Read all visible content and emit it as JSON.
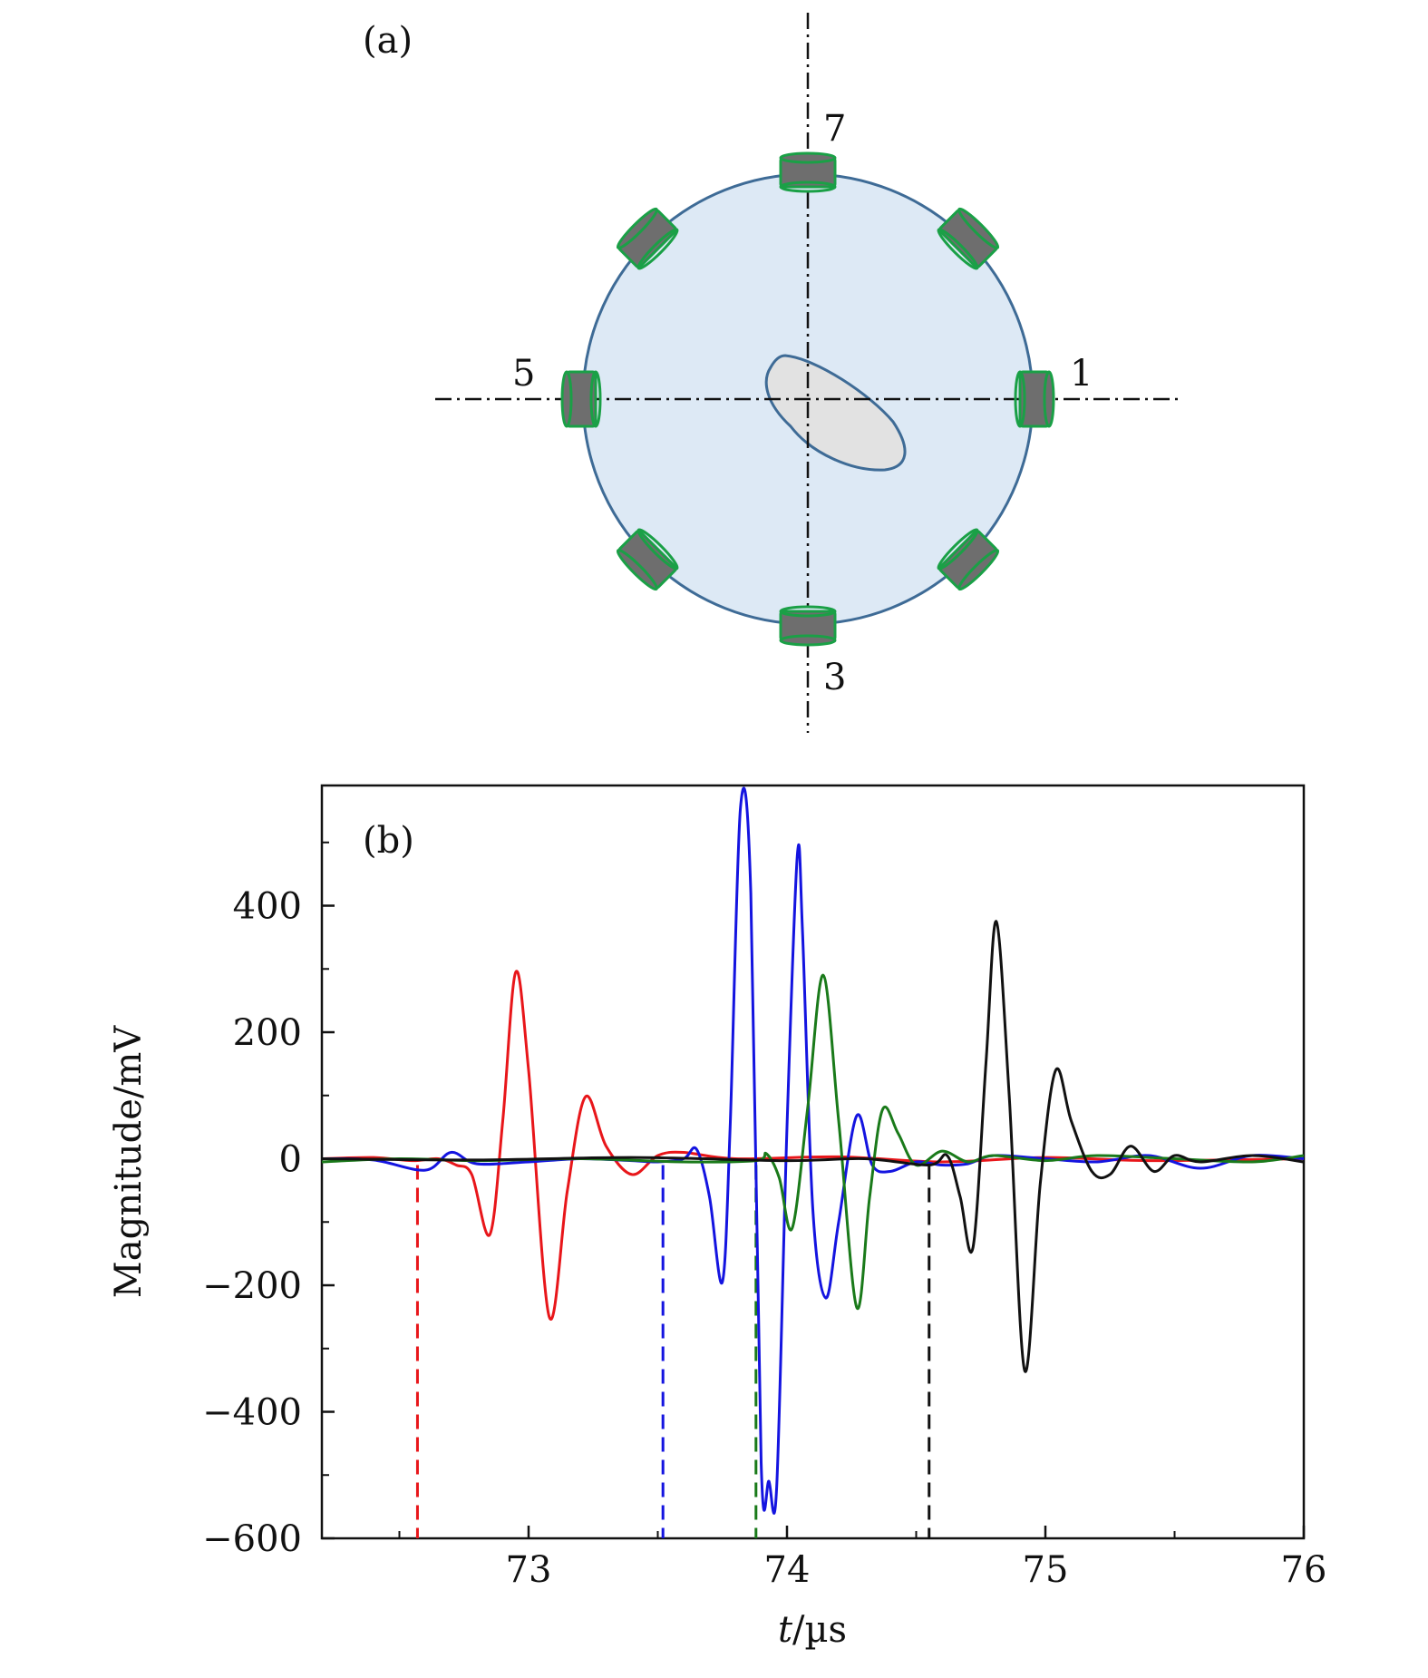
{
  "panel_a": {
    "label": "(a)",
    "sensor_labels": {
      "top": "7",
      "left": "5",
      "right": "1",
      "bottom": "3"
    },
    "colors": {
      "disk_fill": "#dde9f5",
      "disk_edge": "#3e6b96",
      "sensor_body": "#6e6e6e",
      "sensor_edge": "#1aa046",
      "defect_fill": "#e2e2e2",
      "defect_edge": "#3e6b96",
      "axis": "#111111"
    }
  },
  "chart_data": {
    "type": "line",
    "panel_label": "(b)",
    "xlabel_var": "t",
    "xlabel_unit": "/µs",
    "ylabel": "Magnitude/mV",
    "xlim": [
      72.2,
      76.0
    ],
    "ylim": [
      -600,
      590
    ],
    "xticks": [
      73,
      74,
      75,
      76
    ],
    "yticks": [
      -600,
      -400,
      -200,
      0,
      200,
      400
    ],
    "ytick_labels": [
      "−600",
      "−400",
      "−200",
      "0",
      "200",
      "400"
    ],
    "grid": false,
    "series": [
      {
        "color": "#e8161a",
        "onset": 72.57,
        "x": [
          72.2,
          72.4,
          72.55,
          72.65,
          72.72,
          72.78,
          72.85,
          72.9,
          72.95,
          73.0,
          73.08,
          73.15,
          73.22,
          73.3,
          73.4,
          73.5,
          73.6,
          73.8,
          74.2,
          74.6,
          75.0,
          75.4,
          76.0
        ],
        "y": [
          0,
          2,
          -3,
          0,
          -10,
          -25,
          -120,
          60,
          295,
          140,
          -250,
          -50,
          98,
          20,
          -25,
          5,
          10,
          0,
          3,
          -5,
          2,
          -3,
          0
        ]
      },
      {
        "color": "#1414e0",
        "onset": 73.52,
        "x": [
          72.2,
          72.4,
          72.6,
          72.7,
          72.8,
          73.0,
          73.2,
          73.4,
          73.5,
          73.6,
          73.65,
          73.7,
          73.75,
          73.78,
          73.82,
          73.86,
          73.9,
          73.93,
          73.96,
          74.0,
          74.04,
          74.06,
          74.1,
          74.15,
          74.2,
          74.27,
          74.33,
          74.4,
          74.5,
          74.6,
          74.7,
          74.8,
          75.0,
          75.2,
          75.4,
          75.6,
          75.8,
          76.0
        ],
        "y": [
          0,
          -2,
          -18,
          10,
          -8,
          -5,
          0,
          -3,
          -5,
          0,
          15,
          -60,
          -195,
          50,
          555,
          420,
          -480,
          -510,
          -520,
          50,
          480,
          360,
          -80,
          -220,
          -100,
          68,
          -10,
          -20,
          -5,
          -10,
          -8,
          5,
          0,
          -5,
          5,
          -15,
          5,
          0
        ]
      },
      {
        "color": "#1a7a1a",
        "onset": 73.88,
        "x": [
          72.2,
          72.5,
          72.8,
          73.2,
          73.6,
          73.88,
          73.92,
          73.97,
          74.02,
          74.08,
          74.14,
          74.2,
          74.27,
          74.32,
          74.37,
          74.43,
          74.5,
          74.6,
          74.7,
          74.8,
          75.0,
          75.2,
          75.5,
          75.8,
          76.0
        ],
        "y": [
          -5,
          0,
          -3,
          0,
          -5,
          -3,
          8,
          -30,
          -110,
          80,
          290,
          60,
          -235,
          -60,
          78,
          40,
          -10,
          12,
          -5,
          5,
          -3,
          5,
          0,
          -5,
          5
        ]
      },
      {
        "color": "#111111",
        "onset": 74.55,
        "x": [
          72.2,
          72.8,
          73.4,
          74.0,
          74.3,
          74.55,
          74.62,
          74.67,
          74.72,
          74.77,
          74.81,
          74.86,
          74.92,
          74.98,
          75.04,
          75.1,
          75.18,
          75.25,
          75.33,
          75.42,
          75.5,
          75.6,
          75.8,
          76.0
        ],
        "y": [
          0,
          -2,
          2,
          -3,
          0,
          -10,
          5,
          -60,
          -140,
          150,
          375,
          100,
          -335,
          -40,
          140,
          60,
          -20,
          -25,
          20,
          -20,
          5,
          -5,
          5,
          -5
        ]
      }
    ]
  }
}
